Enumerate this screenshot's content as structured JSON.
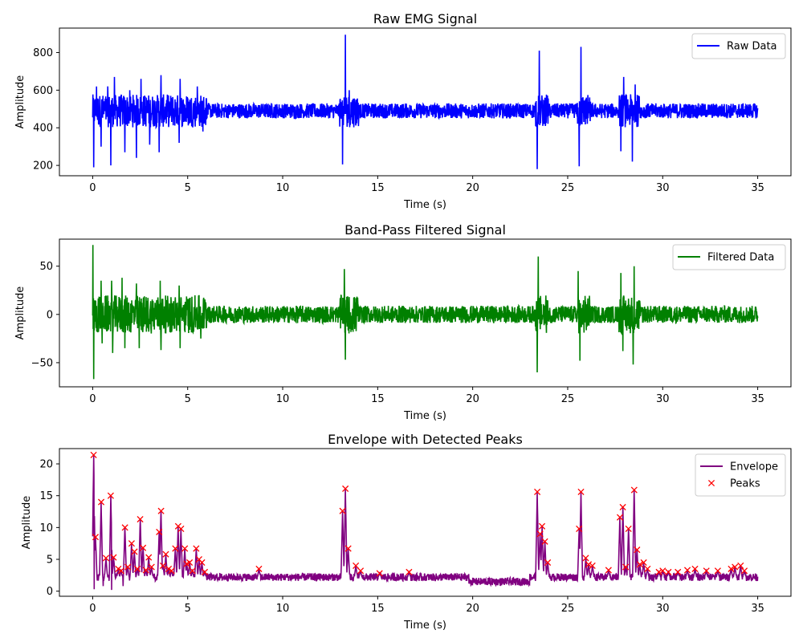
{
  "figure": {
    "charts": [
      {
        "id": "raw",
        "title": "Raw EMG Signal",
        "xlabel": "Time (s)",
        "ylabel": "Amplitude"
      },
      {
        "id": "filtered",
        "title": "Band-Pass Filtered Signal",
        "xlabel": "Time (s)",
        "ylabel": "Amplitude"
      },
      {
        "id": "envelope",
        "title": "Envelope with Detected Peaks",
        "xlabel": "Time (s)",
        "ylabel": "Amplitude"
      }
    ]
  },
  "chart_data": [
    {
      "type": "line",
      "title": "Raw EMG Signal",
      "xlabel": "Time (s)",
      "ylabel": "Amplitude",
      "xlim": [
        -1.75,
        36.75
      ],
      "ylim": [
        145,
        930
      ],
      "xticks": [
        0,
        5,
        10,
        15,
        20,
        25,
        30,
        35
      ],
      "yticks": [
        200,
        400,
        600,
        800
      ],
      "legend_position": "top-right",
      "grid": false,
      "series": [
        {
          "name": "Raw Data",
          "color": "#0000ff",
          "kind": "signal",
          "t_range": [
            0,
            35
          ],
          "baseline": 490,
          "noise_amplitude": 40,
          "spikes": [
            {
              "t": 0.05,
              "y": 190
            },
            {
              "t": 0.2,
              "y": 620
            },
            {
              "t": 0.45,
              "y": 300
            },
            {
              "t": 0.8,
              "y": 620
            },
            {
              "t": 0.95,
              "y": 200
            },
            {
              "t": 1.15,
              "y": 670
            },
            {
              "t": 1.7,
              "y": 270
            },
            {
              "t": 1.95,
              "y": 600
            },
            {
              "t": 2.3,
              "y": 240
            },
            {
              "t": 2.55,
              "y": 660
            },
            {
              "t": 3.0,
              "y": 310
            },
            {
              "t": 3.6,
              "y": 680
            },
            {
              "t": 3.5,
              "y": 270
            },
            {
              "t": 4.6,
              "y": 660
            },
            {
              "t": 4.55,
              "y": 320
            },
            {
              "t": 5.5,
              "y": 620
            },
            {
              "t": 5.8,
              "y": 380
            },
            {
              "t": 13.15,
              "y": 205
            },
            {
              "t": 13.3,
              "y": 895
            },
            {
              "t": 13.5,
              "y": 600
            },
            {
              "t": 23.4,
              "y": 180
            },
            {
              "t": 23.5,
              "y": 810
            },
            {
              "t": 23.8,
              "y": 560
            },
            {
              "t": 25.6,
              "y": 195
            },
            {
              "t": 25.7,
              "y": 830
            },
            {
              "t": 27.8,
              "y": 275
            },
            {
              "t": 27.95,
              "y": 670
            },
            {
              "t": 28.4,
              "y": 220
            },
            {
              "t": 28.55,
              "y": 630
            }
          ]
        }
      ]
    },
    {
      "type": "line",
      "title": "Band-Pass Filtered Signal",
      "xlabel": "Time (s)",
      "ylabel": "Amplitude",
      "xlim": [
        -1.75,
        36.75
      ],
      "ylim": [
        -75,
        78
      ],
      "xticks": [
        0,
        5,
        10,
        15,
        20,
        25,
        30,
        35
      ],
      "yticks": [
        -50,
        0,
        50
      ],
      "legend_position": "top-right",
      "grid": false,
      "series": [
        {
          "name": "Filtered Data",
          "color": "#008000",
          "kind": "signal",
          "t_range": [
            0,
            35
          ],
          "baseline": 0,
          "noise_amplitude": 9,
          "spikes": [
            {
              "t": 0.02,
              "y": 72
            },
            {
              "t": 0.06,
              "y": -67
            },
            {
              "t": 0.45,
              "y": 35
            },
            {
              "t": 0.5,
              "y": -30
            },
            {
              "t": 1.0,
              "y": 35
            },
            {
              "t": 1.05,
              "y": -40
            },
            {
              "t": 1.55,
              "y": 38
            },
            {
              "t": 1.7,
              "y": -35
            },
            {
              "t": 2.3,
              "y": 32
            },
            {
              "t": 2.45,
              "y": -35
            },
            {
              "t": 3.55,
              "y": 35
            },
            {
              "t": 3.6,
              "y": -37
            },
            {
              "t": 4.55,
              "y": 30
            },
            {
              "t": 4.6,
              "y": -35
            },
            {
              "t": 5.6,
              "y": 20
            },
            {
              "t": 5.7,
              "y": -25
            },
            {
              "t": 13.25,
              "y": 47
            },
            {
              "t": 13.3,
              "y": -47
            },
            {
              "t": 23.45,
              "y": 60
            },
            {
              "t": 23.4,
              "y": -60
            },
            {
              "t": 25.55,
              "y": 45
            },
            {
              "t": 25.65,
              "y": -48
            },
            {
              "t": 27.8,
              "y": 43
            },
            {
              "t": 27.9,
              "y": -38
            },
            {
              "t": 28.5,
              "y": 50
            },
            {
              "t": 28.45,
              "y": -52
            }
          ]
        }
      ]
    },
    {
      "type": "line",
      "title": "Envelope with Detected Peaks",
      "xlabel": "Time (s)",
      "ylabel": "Amplitude",
      "xlim": [
        -1.75,
        36.75
      ],
      "ylim": [
        -0.8,
        22.4
      ],
      "xticks": [
        0,
        5,
        10,
        15,
        20,
        25,
        30,
        35
      ],
      "yticks": [
        0,
        5,
        10,
        15,
        20
      ],
      "legend_position": "top-right",
      "grid": false,
      "series": [
        {
          "name": "Envelope",
          "color": "#800080",
          "kind": "envelope",
          "t_range": [
            0,
            35
          ],
          "baseline": 2.2,
          "noise_amplitude": 0.6
        },
        {
          "name": "Peaks",
          "color": "#ff0000",
          "kind": "markers",
          "marker": "x",
          "x": [
            0.05,
            0.15,
            0.45,
            0.7,
            0.95,
            1.1,
            1.35,
            1.5,
            1.7,
            1.85,
            2.05,
            2.2,
            2.35,
            2.5,
            2.65,
            2.8,
            2.95,
            3.1,
            3.5,
            3.6,
            3.7,
            3.85,
            4.0,
            4.15,
            4.35,
            4.5,
            4.65,
            4.85,
            4.95,
            5.1,
            5.25,
            5.45,
            5.6,
            5.75,
            5.9,
            8.75,
            13.15,
            13.3,
            13.45,
            13.85,
            14.1,
            15.1,
            16.65,
            23.4,
            23.55,
            23.65,
            23.8,
            23.95,
            25.6,
            25.7,
            25.95,
            26.1,
            26.3,
            27.15,
            27.75,
            27.9,
            28.05,
            28.2,
            28.5,
            28.65,
            28.8,
            29.0,
            29.2,
            29.8,
            30.0,
            30.3,
            30.8,
            31.3,
            31.7,
            32.3,
            32.9,
            33.6,
            33.8,
            34.1,
            34.3
          ],
          "y": [
            21.4,
            8.5,
            14.0,
            5.2,
            15.0,
            5.3,
            3.5,
            3.2,
            10.0,
            3.8,
            7.5,
            6.2,
            3.5,
            11.3,
            6.8,
            3.3,
            5.3,
            3.8,
            9.3,
            12.6,
            4.0,
            5.8,
            3.5,
            3.2,
            6.7,
            10.2,
            9.8,
            6.7,
            4.3,
            4.5,
            3.2,
            6.7,
            5.0,
            4.5,
            3.0,
            3.5,
            12.6,
            16.1,
            6.7,
            4.0,
            3.2,
            2.8,
            3.0,
            15.6,
            9.0,
            10.2,
            7.8,
            4.5,
            9.8,
            15.6,
            5.2,
            4.2,
            4.0,
            3.3,
            11.6,
            13.2,
            3.8,
            9.8,
            15.9,
            6.5,
            4.2,
            4.5,
            3.5,
            3.0,
            3.2,
            3.0,
            3.0,
            3.3,
            3.5,
            3.2,
            3.2,
            3.5,
            3.8,
            4.0,
            3.2
          ]
        }
      ]
    }
  ]
}
